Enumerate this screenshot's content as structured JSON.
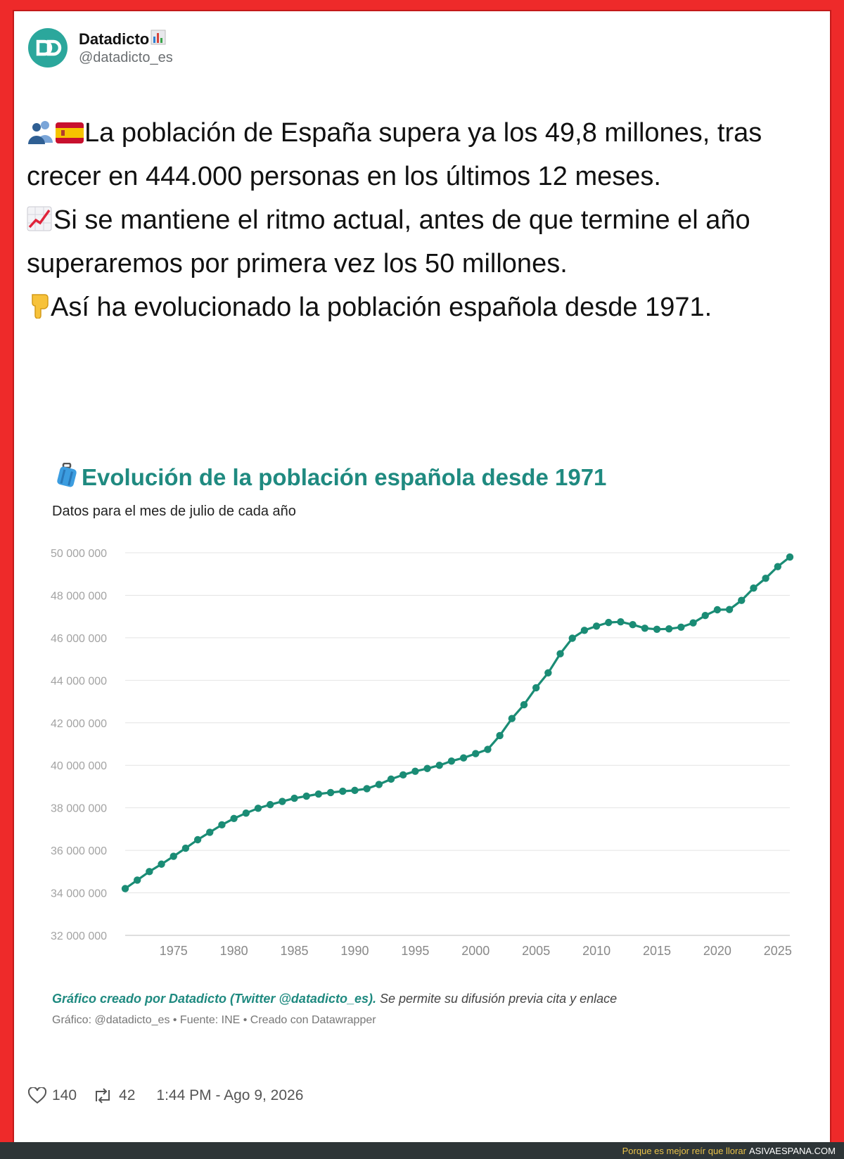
{
  "footer": {
    "tagline": "Porque es mejor reír que llorar",
    "site": "ASIVAESPANA.COM"
  },
  "user": {
    "display_name": "Datadicto",
    "handle": "@datadicto_es"
  },
  "tweet": {
    "paragraph1": "La población de España supera ya los 49,8 millones, tras crecer en 444.000 personas en los últimos 12 meses.",
    "paragraph2": "Si se mantiene el ritmo actual, antes de que termine el año superaremos por primera vez los 50 millones.",
    "paragraph3": "Así ha evolucionado la población española desde 1971."
  },
  "chart_card": {
    "credit_bold": "Gráfico creado por Datadicto (Twitter @datadicto_es).",
    "credit_rest": " Se permite su difusión previa cita y enlace",
    "source": "Gráfico: @datadicto_es • Fuente: INE • Creado con Datawrapper"
  },
  "chart_data": {
    "type": "line",
    "title": "Evolución de la población española desde 1971",
    "subtitle": "Datos para el mes de julio de cada año",
    "xlabel": "",
    "ylabel": "",
    "xlim": [
      1971,
      2026
    ],
    "ylim": [
      32000000,
      50000000
    ],
    "x_ticks": [
      1975,
      1980,
      1985,
      1990,
      1995,
      2000,
      2005,
      2010,
      2015,
      2020,
      2025
    ],
    "y_ticks": [
      32000000,
      34000000,
      36000000,
      38000000,
      40000000,
      42000000,
      44000000,
      46000000,
      48000000,
      50000000
    ],
    "y_tick_labels": [
      "32 000 000",
      "34 000 000",
      "36 000 000",
      "38 000 000",
      "40 000 000",
      "42 000 000",
      "44 000 000",
      "46 000 000",
      "48 000 000",
      "50 000 000"
    ],
    "grid": true,
    "line_color": "#1a8c75",
    "x": [
      1971,
      1972,
      1973,
      1974,
      1975,
      1976,
      1977,
      1978,
      1979,
      1980,
      1981,
      1982,
      1983,
      1984,
      1985,
      1986,
      1987,
      1988,
      1989,
      1990,
      1991,
      1992,
      1993,
      1994,
      1995,
      1996,
      1997,
      1998,
      1999,
      2000,
      2001,
      2002,
      2003,
      2004,
      2005,
      2006,
      2007,
      2008,
      2009,
      2010,
      2011,
      2012,
      2013,
      2014,
      2015,
      2016,
      2017,
      2018,
      2019,
      2020,
      2021,
      2022,
      2023,
      2024,
      2025,
      2026
    ],
    "y": [
      34200000,
      34600000,
      35000000,
      35350000,
      35720000,
      36100000,
      36500000,
      36850000,
      37200000,
      37500000,
      37750000,
      37980000,
      38150000,
      38300000,
      38450000,
      38550000,
      38650000,
      38720000,
      38780000,
      38820000,
      38900000,
      39100000,
      39350000,
      39550000,
      39720000,
      39850000,
      40000000,
      40200000,
      40350000,
      40550000,
      40750000,
      41400000,
      42200000,
      42850000,
      43650000,
      44350000,
      45250000,
      45980000,
      46350000,
      46550000,
      46720000,
      46750000,
      46620000,
      46450000,
      46400000,
      46420000,
      46500000,
      46700000,
      47050000,
      47320000,
      47330000,
      47760000,
      48340000,
      48800000,
      49350000,
      49800000
    ]
  },
  "engagement": {
    "likes": "140",
    "retweets": "42",
    "timestamp": "1:44 PM - Ago 9, 2026"
  },
  "colors": {
    "frame": "#ee2a2a",
    "accent": "#1f8a80",
    "avatar": "#2ba79c"
  }
}
